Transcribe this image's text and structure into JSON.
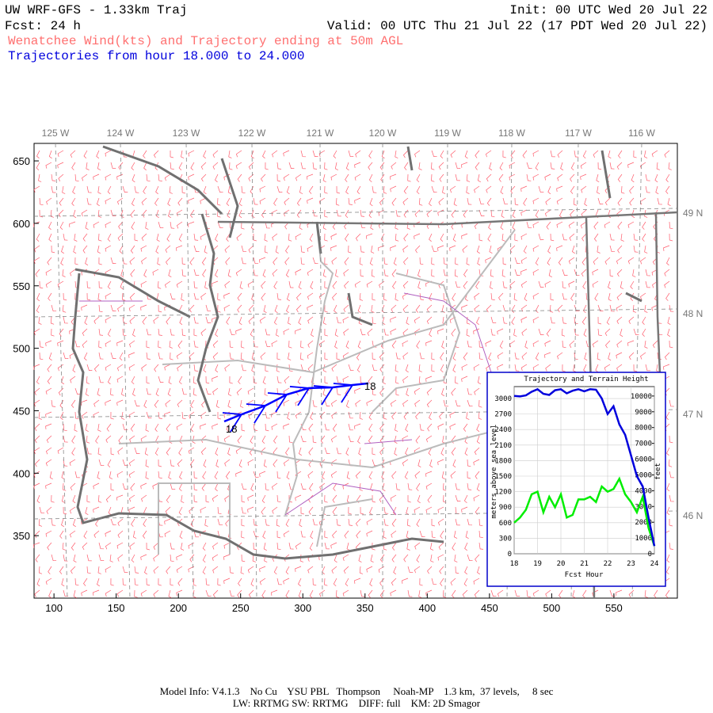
{
  "header": {
    "title": "UW WRF-GFS - 1.33km Traj",
    "init": "Init: 00 UTC Wed 20 Jul 22",
    "fcst": "Fcst:   24 h",
    "valid": "Valid: 00 UTC Thu 21 Jul 22 (17 PDT Wed 20 Jul 22)",
    "subtitle": "Wenatchee Wind(kts) and Trajectory ending at 50m AGL",
    "traj_range": "Trajectories from hour  18.000 to  24.000"
  },
  "map": {
    "xlim": [
      84,
      601
    ],
    "ylim": [
      300,
      664
    ],
    "xticks": [
      100,
      150,
      200,
      250,
      300,
      350,
      400,
      450,
      500,
      550
    ],
    "yticks": [
      350,
      400,
      450,
      500,
      550,
      600,
      650
    ],
    "lon_labels": [
      "125 W",
      "124 W",
      "123 W",
      "122 W",
      "121 W",
      "120 W",
      "119 W",
      "118 W",
      "117 W",
      "116 W"
    ],
    "lat_labels": [
      "49 N",
      "48 N",
      "47 N",
      "46 N"
    ],
    "trajectory": {
      "color": "#0000ff",
      "x": [
        236.8,
        250.8,
        269.9,
        287.1,
        304.9,
        324.0,
        339.9,
        352.7
      ],
      "y": [
        441.4,
        447.1,
        454.1,
        463.0,
        468.1,
        468.7,
        470.6,
        471.9
      ],
      "start_label": "18",
      "end_label": "18"
    }
  },
  "inset_chart": {
    "type": "line",
    "title": "Trajectory and Terrain Height",
    "x_label": "Fcst Hour",
    "y_label": "meters above sea level",
    "y2_label": "feet",
    "xlim": [
      18,
      24
    ],
    "xticks": [
      18,
      19,
      20,
      21,
      22,
      23,
      24
    ],
    "ylim": [
      0,
      3230
    ],
    "yticks": [
      0,
      300,
      600,
      900,
      1200,
      1500,
      1800,
      2100,
      2400,
      2700,
      3000
    ],
    "y2lim": [
      0,
      10597
    ],
    "y2ticks": [
      0,
      1000,
      2000,
      3000,
      4000,
      5000,
      6000,
      7000,
      8000,
      9000,
      10000
    ],
    "x": [
      18,
      18.25,
      18.5,
      18.75,
      19,
      19.25,
      19.5,
      19.75,
      20,
      20.25,
      20.5,
      20.75,
      21,
      21.25,
      21.5,
      21.75,
      22,
      22.25,
      22.5,
      22.75,
      23,
      23.25,
      23.5,
      23.75,
      24
    ],
    "series": [
      {
        "color": "#0000dd",
        "values": [
          3050,
          3040,
          3060,
          3130,
          3180,
          3090,
          3070,
          3160,
          3180,
          3100,
          3150,
          3180,
          3140,
          3180,
          3170,
          3000,
          2700,
          2850,
          2500,
          2300,
          1900,
          1500,
          1300,
          700,
          150
        ]
      },
      {
        "color": "#00ee00",
        "values": [
          600,
          700,
          850,
          1150,
          1200,
          800,
          1100,
          900,
          1150,
          700,
          750,
          1050,
          1050,
          1100,
          1000,
          1300,
          1200,
          1250,
          1450,
          1150,
          1000,
          800,
          1100,
          500,
          150
        ]
      }
    ]
  },
  "footer": {
    "line1": "Model Info: V4.1.3    No Cu    YSU PBL   Thompson     Noah-MP    1.3 km,  37 levels,     8 sec",
    "line2": "LW: RRTMG SW: RRTMG    DIFF: full    KM: 2D Smagor"
  }
}
